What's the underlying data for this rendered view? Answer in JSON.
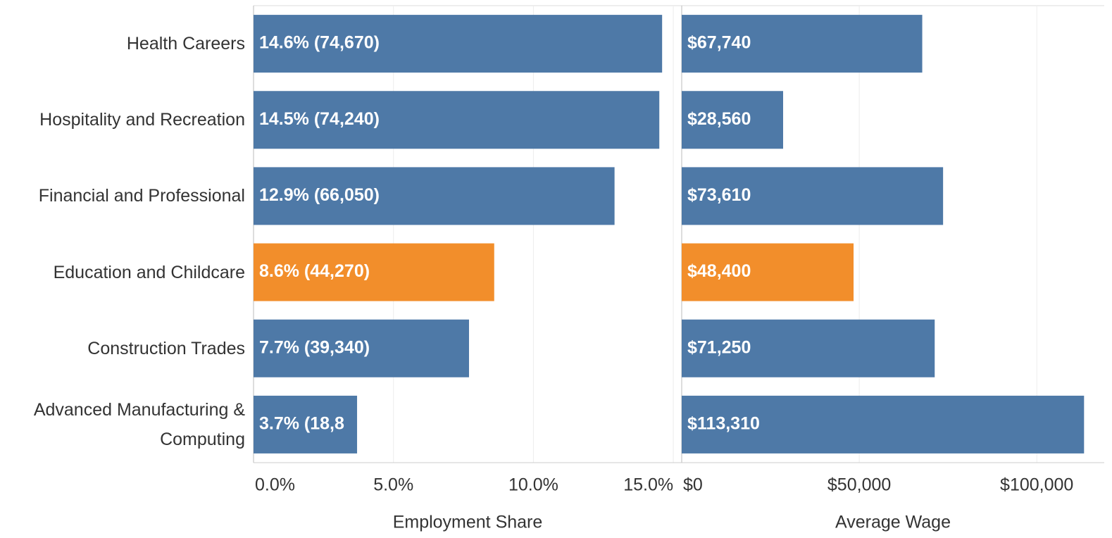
{
  "chart_data": [
    {
      "type": "hbar",
      "categories": [
        "Health Careers",
        "Hospitality and Recreation",
        "Financial and Professional",
        "Education and Childcare",
        "Construction Trades",
        "Advanced Manufacturing & Computing"
      ],
      "values": [
        14.6,
        14.5,
        12.9,
        8.6,
        7.7,
        3.7
      ],
      "value_labels": [
        "14.6% (74,670)",
        "14.5% (74,240)",
        "12.9% (66,050)",
        "8.6% (44,270)",
        "7.7% (39,340)",
        "3.7% (18,8"
      ],
      "colors": [
        "#4e79a7",
        "#4e79a7",
        "#4e79a7",
        "#f28e2b",
        "#4e79a7",
        "#4e79a7"
      ],
      "xlabel": "Employment Share",
      "xlim": [
        0,
        15.3
      ],
      "xticks": [
        {
          "value": 0,
          "label": "0.0%"
        },
        {
          "value": 5,
          "label": "5.0%"
        },
        {
          "value": 10,
          "label": "10.0%"
        },
        {
          "value": 15,
          "label": "15.0%"
        }
      ],
      "grid": true
    },
    {
      "type": "hbar",
      "values": [
        67740,
        28560,
        73610,
        48400,
        71250,
        113310
      ],
      "value_labels": [
        "$67,740",
        "$28,560",
        "$73,610",
        "$48,400",
        "$71,250",
        "$113,310"
      ],
      "colors": [
        "#4e79a7",
        "#4e79a7",
        "#4e79a7",
        "#f28e2b",
        "#4e79a7",
        "#4e79a7"
      ],
      "xlabel": "Average Wage",
      "xlim": [
        0,
        119000
      ],
      "xticks": [
        {
          "value": 0,
          "label": "$0"
        },
        {
          "value": 50000,
          "label": "$50,000"
        },
        {
          "value": 100000,
          "label": "$100,000"
        }
      ],
      "grid": true
    }
  ]
}
